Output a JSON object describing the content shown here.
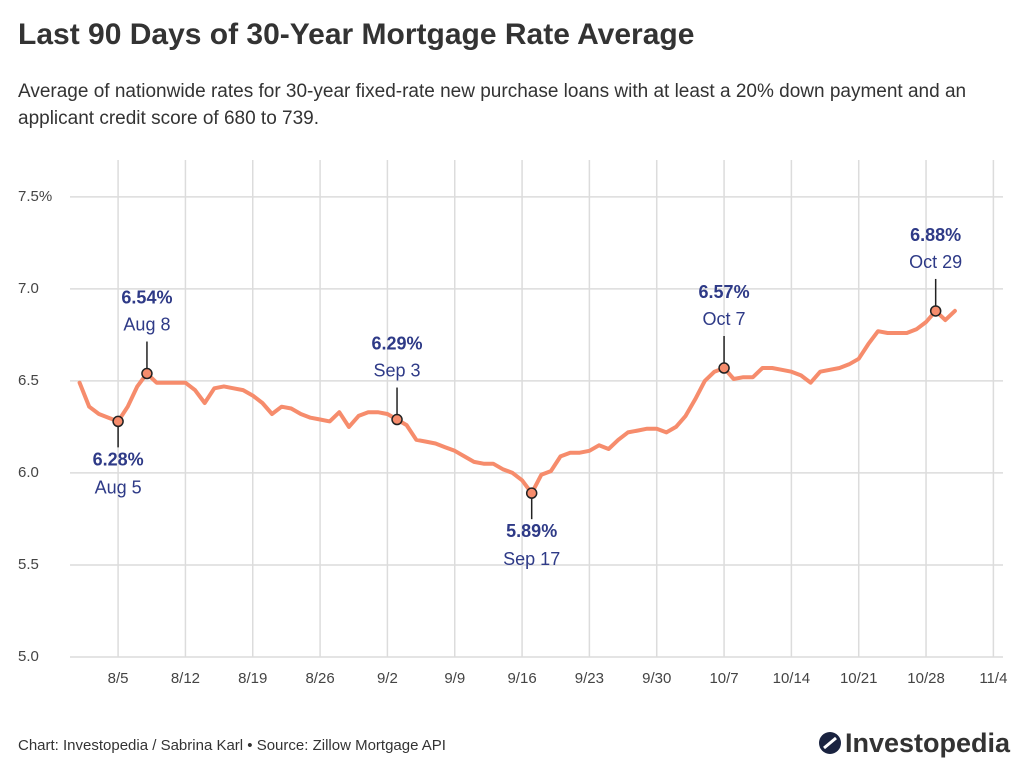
{
  "chart_data": {
    "type": "line",
    "title": "Last 90 Days of 30-Year Mortgage Rate Average",
    "subtitle": "Average of nationwide rates for 30-year fixed-rate new purchase loans with at least a 20% down payment and an applicant credit score of 680 to 739.",
    "source": "Chart: Investopedia / Sabrina Karl • Source: Zillow Mortgage API",
    "brand": "Investopedia",
    "color": "#f68c6c",
    "grid": true,
    "x": [
      "8/1",
      "8/2",
      "8/3",
      "8/4",
      "8/5",
      "8/6",
      "8/7",
      "8/8",
      "8/9",
      "8/10",
      "8/11",
      "8/12",
      "8/13",
      "8/14",
      "8/15",
      "8/16",
      "8/17",
      "8/18",
      "8/19",
      "8/20",
      "8/21",
      "8/22",
      "8/23",
      "8/24",
      "8/25",
      "8/26",
      "8/27",
      "8/28",
      "8/29",
      "8/30",
      "8/31",
      "9/1",
      "9/2",
      "9/3",
      "9/4",
      "9/5",
      "9/6",
      "9/7",
      "9/8",
      "9/9",
      "9/10",
      "9/11",
      "9/12",
      "9/13",
      "9/14",
      "9/15",
      "9/16",
      "9/17",
      "9/18",
      "9/19",
      "9/20",
      "9/21",
      "9/22",
      "9/23",
      "9/24",
      "9/25",
      "9/26",
      "9/27",
      "9/28",
      "9/29",
      "9/30",
      "10/1",
      "10/2",
      "10/3",
      "10/4",
      "10/5",
      "10/6",
      "10/7",
      "10/8",
      "10/9",
      "10/10",
      "10/11",
      "10/12",
      "10/13",
      "10/14",
      "10/15",
      "10/16",
      "10/17",
      "10/18",
      "10/19",
      "10/20",
      "10/21",
      "10/22",
      "10/23",
      "10/24",
      "10/25",
      "10/26",
      "10/27",
      "10/28",
      "10/29",
      "10/30",
      "10/31"
    ],
    "values": [
      6.49,
      6.36,
      6.32,
      6.3,
      6.28,
      6.36,
      6.47,
      6.54,
      6.49,
      6.49,
      6.49,
      6.49,
      6.45,
      6.38,
      6.46,
      6.47,
      6.46,
      6.45,
      6.42,
      6.38,
      6.32,
      6.36,
      6.35,
      6.32,
      6.3,
      6.29,
      6.28,
      6.33,
      6.25,
      6.31,
      6.33,
      6.33,
      6.32,
      6.29,
      6.26,
      6.18,
      6.17,
      6.16,
      6.14,
      6.12,
      6.09,
      6.06,
      6.05,
      6.05,
      6.02,
      6.0,
      5.96,
      5.89,
      5.99,
      6.01,
      6.09,
      6.11,
      6.11,
      6.12,
      6.15,
      6.13,
      6.18,
      6.22,
      6.23,
      6.24,
      6.24,
      6.22,
      6.25,
      6.31,
      6.4,
      6.5,
      6.55,
      6.57,
      6.51,
      6.52,
      6.52,
      6.57,
      6.57,
      6.56,
      6.55,
      6.53,
      6.49,
      6.55,
      6.56,
      6.57,
      6.59,
      6.62,
      6.7,
      6.77,
      6.76,
      6.76,
      6.76,
      6.78,
      6.82,
      6.88,
      6.83,
      6.88
    ],
    "xlim": [
      "7/31",
      "11/5"
    ],
    "xticks": [
      "8/5",
      "8/12",
      "8/19",
      "8/26",
      "9/2",
      "9/9",
      "9/16",
      "9/23",
      "9/30",
      "10/7",
      "10/14",
      "10/21",
      "10/28",
      "11/4"
    ],
    "ylim": [
      5,
      7.7
    ],
    "yticks": [
      {
        "value": 5,
        "label": "5.0"
      },
      5.5,
      {
        "value": 6,
        "label": "6.0"
      },
      6.5,
      {
        "value": 7,
        "label": "7.0"
      },
      {
        "value": 7.5,
        "label": "7.5%"
      }
    ],
    "annotations": [
      {
        "x": "8/5",
        "value": 6.28,
        "value_label": "6.28%",
        "label": "Aug 5",
        "position": "below"
      },
      {
        "x": "8/8",
        "value": 6.54,
        "value_label": "6.54%",
        "label": "Aug 8",
        "position": "above"
      },
      {
        "x": "9/3",
        "value": 6.29,
        "value_label": "6.29%",
        "label": "Sep 3",
        "position": "above"
      },
      {
        "x": "9/17",
        "value": 5.89,
        "value_label": "5.89%",
        "label": "Sep 17",
        "position": "below"
      },
      {
        "x": "10/7",
        "value": 6.57,
        "value_label": "6.57%",
        "label": "Oct 7",
        "position": "above"
      },
      {
        "x": "10/29",
        "value": 6.88,
        "value_label": "6.88%",
        "label": "Oct 29",
        "position": "above"
      }
    ]
  }
}
